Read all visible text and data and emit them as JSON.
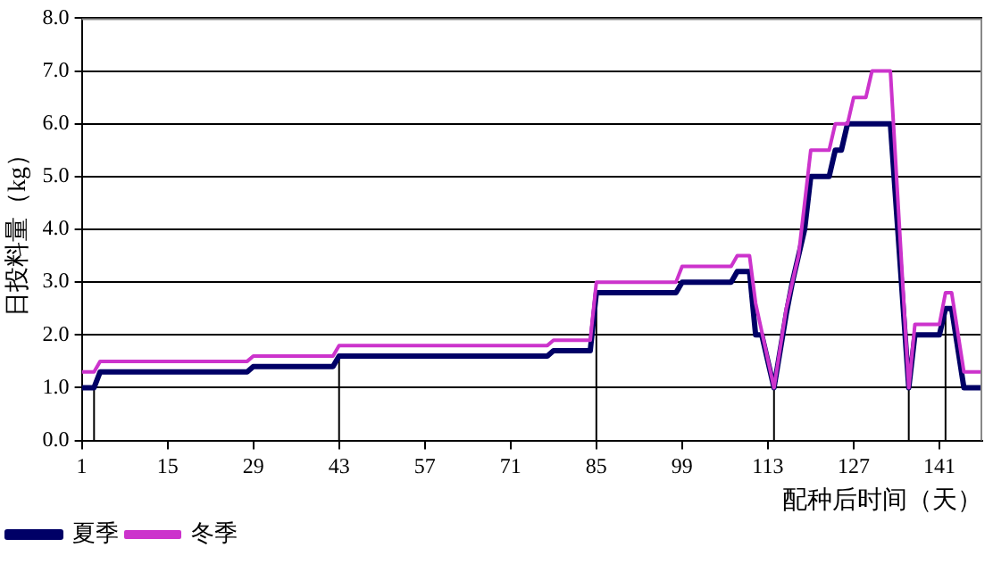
{
  "chart_data": {
    "type": "line",
    "xlabel": "配种后时间（天）",
    "ylabel": "日投料量（kg）",
    "xlim": [
      1,
      148
    ],
    "xticks": [
      1,
      15,
      29,
      43,
      57,
      71,
      85,
      99,
      113,
      127,
      141
    ],
    "ylim": [
      0,
      8
    ],
    "yticks": [
      {
        "value": 0,
        "label": "0.0"
      },
      {
        "value": 1,
        "label": "1.0"
      },
      {
        "value": 2,
        "label": "2.0"
      },
      {
        "value": 3,
        "label": "3.0"
      },
      {
        "value": 4,
        "label": "4.0"
      },
      {
        "value": 5,
        "label": "5.0"
      },
      {
        "value": 6,
        "label": "6.0"
      },
      {
        "value": 7,
        "label": "7.0"
      },
      {
        "value": 8,
        "label": "8.0"
      }
    ],
    "grid": "y",
    "legend": "bottom left",
    "marker": "none",
    "line_style": "solid",
    "ref_lines": [
      {
        "axis": "x",
        "value": 3,
        "color": "#000000"
      },
      {
        "axis": "x",
        "value": 43,
        "color": "#000000"
      },
      {
        "axis": "x",
        "value": 85,
        "color": "#000000"
      },
      {
        "axis": "x",
        "value": 114,
        "color": "#000000"
      },
      {
        "axis": "x",
        "value": 136,
        "color": "#000000"
      },
      {
        "axis": "x",
        "value": 142,
        "color": "#000000"
      }
    ],
    "series": [
      {
        "name": "夏季",
        "color": "#000066",
        "x": [
          1,
          3,
          4,
          28,
          29,
          42,
          43,
          77,
          78,
          84,
          85,
          98,
          99,
          107,
          108,
          110,
          111,
          112,
          114,
          116,
          117,
          118,
          119,
          120,
          123,
          124,
          125,
          126,
          133,
          136,
          137,
          141,
          142,
          143,
          145,
          148
        ],
        "values": [
          1.0,
          1.0,
          1.3,
          1.3,
          1.4,
          1.4,
          1.6,
          1.6,
          1.7,
          1.7,
          2.8,
          2.8,
          3.0,
          3.0,
          3.2,
          3.2,
          2.0,
          2.0,
          1.0,
          2.4,
          3.0,
          3.5,
          4.0,
          5.0,
          5.0,
          5.5,
          5.5,
          6.0,
          6.0,
          1.0,
          2.0,
          2.0,
          2.5,
          2.5,
          1.0,
          1.0
        ]
      },
      {
        "name": "冬季",
        "color": "#cc33cc",
        "x": [
          1,
          3,
          4,
          28,
          29,
          42,
          43,
          77,
          78,
          84,
          85,
          98,
          99,
          107,
          108,
          110,
          111,
          114,
          116,
          118,
          119,
          120,
          123,
          124,
          126,
          127,
          129,
          130,
          133,
          136,
          137,
          141,
          142,
          143,
          145,
          148
        ],
        "values": [
          1.3,
          1.3,
          1.5,
          1.5,
          1.6,
          1.6,
          1.8,
          1.8,
          1.9,
          1.9,
          3.0,
          3.0,
          3.3,
          3.3,
          3.5,
          3.5,
          2.6,
          1.0,
          2.5,
          3.5,
          4.5,
          5.5,
          5.5,
          6.0,
          6.0,
          6.5,
          6.5,
          7.0,
          7.0,
          1.0,
          2.2,
          2.2,
          2.8,
          2.8,
          1.3,
          1.3
        ]
      }
    ]
  }
}
